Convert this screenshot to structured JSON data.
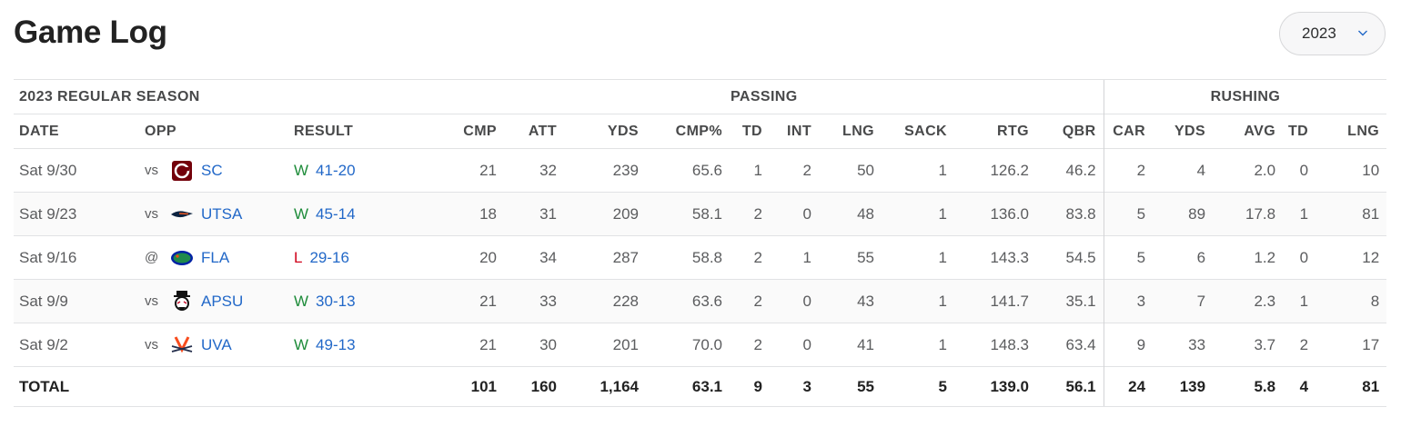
{
  "page": {
    "title": "Game Log"
  },
  "season_select": {
    "value": "2023"
  },
  "table": {
    "season_label": "2023 REGULAR SEASON",
    "group_passing": "PASSING",
    "group_rushing": "RUSHING",
    "headers": [
      "DATE",
      "OPP",
      "RESULT",
      "CMP",
      "ATT",
      "YDS",
      "CMP%",
      "TD",
      "INT",
      "LNG",
      "SACK",
      "RTG",
      "QBR",
      "CAR",
      "YDS",
      "AVG",
      "TD",
      "LNG"
    ],
    "rows": [
      {
        "date": "Sat 9/30",
        "ha": "vs",
        "team": "SC",
        "logo": "south-carolina-logo-icon",
        "wl": "W",
        "score": "41-20",
        "stats": [
          "21",
          "32",
          "239",
          "65.6",
          "1",
          "2",
          "50",
          "1",
          "126.2",
          "46.2",
          "2",
          "4",
          "2.0",
          "0",
          "10"
        ]
      },
      {
        "date": "Sat 9/23",
        "ha": "vs",
        "team": "UTSA",
        "logo": "utsa-logo-icon",
        "wl": "W",
        "score": "45-14",
        "stats": [
          "18",
          "31",
          "209",
          "58.1",
          "2",
          "0",
          "48",
          "1",
          "136.0",
          "83.8",
          "5",
          "89",
          "17.8",
          "1",
          "81"
        ]
      },
      {
        "date": "Sat 9/16",
        "ha": "@",
        "team": "FLA",
        "logo": "florida-logo-icon",
        "wl": "L",
        "score": "29-16",
        "stats": [
          "20",
          "34",
          "287",
          "58.8",
          "2",
          "1",
          "55",
          "1",
          "143.3",
          "54.5",
          "5",
          "6",
          "1.2",
          "0",
          "12"
        ]
      },
      {
        "date": "Sat 9/9",
        "ha": "vs",
        "team": "APSU",
        "logo": "austin-peay-logo-icon",
        "wl": "W",
        "score": "30-13",
        "stats": [
          "21",
          "33",
          "228",
          "63.6",
          "2",
          "0",
          "43",
          "1",
          "141.7",
          "35.1",
          "3",
          "7",
          "2.3",
          "1",
          "8"
        ]
      },
      {
        "date": "Sat 9/2",
        "ha": "vs",
        "team": "UVA",
        "logo": "virginia-logo-icon",
        "wl": "W",
        "score": "49-13",
        "stats": [
          "21",
          "30",
          "201",
          "70.0",
          "2",
          "0",
          "41",
          "1",
          "148.3",
          "63.4",
          "9",
          "33",
          "3.7",
          "2",
          "17"
        ]
      }
    ],
    "total": {
      "label": "TOTAL",
      "stats": [
        "101",
        "160",
        "1,164",
        "63.1",
        "9",
        "3",
        "55",
        "5",
        "139.0",
        "56.1",
        "24",
        "139",
        "5.8",
        "4",
        "81"
      ]
    }
  },
  "colors": {
    "link": "#2268c8",
    "win": "#1e8c3a",
    "loss": "#d0021b"
  }
}
